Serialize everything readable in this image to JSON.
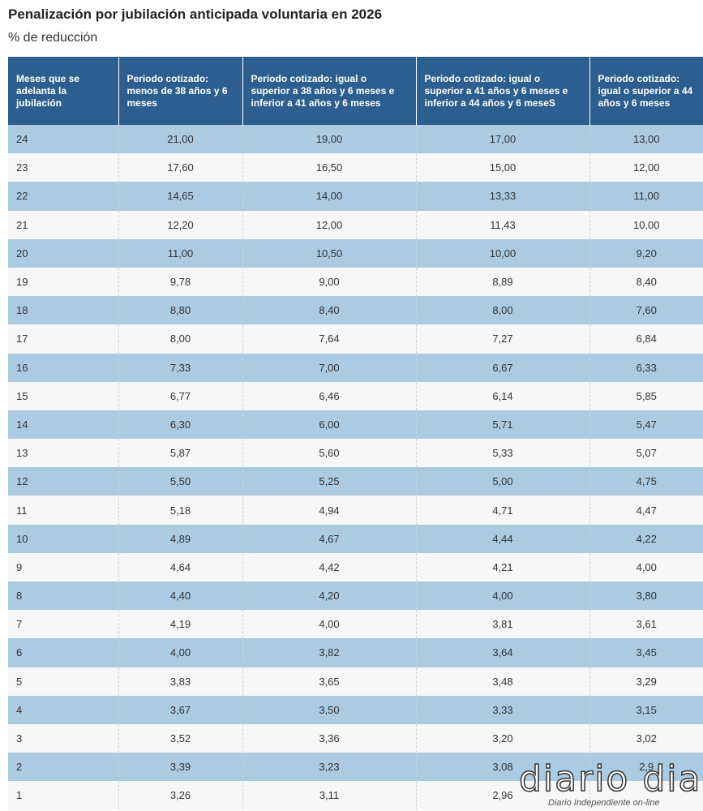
{
  "title": "Penalización por jubilación anticipada voluntaria en 2026",
  "subtitle": "% de reducción",
  "chart_data": {
    "type": "table",
    "columns": [
      "Meses que se adelanta la jubilación",
      "Periodo cotizado: menos de 38 años y 6 meses",
      "Periodo cotizado: igual o superior a 38 años y 6 meses e inferior a 41 años y 6 meses",
      "Periodo cotizado: igual o superior a 41 años y 6 meses e inferior a 44 años y 6 meseS",
      "Periodo cotizado: igual o superior a 44 años y 6 meses"
    ],
    "rows": [
      [
        "24",
        "21,00",
        "19,00",
        "17,00",
        "13,00"
      ],
      [
        "23",
        "17,60",
        "16,50",
        "15,00",
        "12,00"
      ],
      [
        "22",
        "14,65",
        "14,00",
        "13,33",
        "11,00"
      ],
      [
        "21",
        "12,20",
        "12,00",
        "11,43",
        "10,00"
      ],
      [
        "20",
        "11,00",
        "10,50",
        "10,00",
        "9,20"
      ],
      [
        "19",
        "9,78",
        "9,00",
        "8,89",
        "8,40"
      ],
      [
        "18",
        "8,80",
        "8,40",
        "8,00",
        "7,60"
      ],
      [
        "17",
        "8,00",
        "7,64",
        "7,27",
        "6,84"
      ],
      [
        "16",
        "7,33",
        "7,00",
        "6,67",
        "6,33"
      ],
      [
        "15",
        "6,77",
        "6,46",
        "6,14",
        "5,85"
      ],
      [
        "14",
        "6,30",
        "6,00",
        "5,71",
        "5,47"
      ],
      [
        "13",
        "5,87",
        "5,60",
        "5,33",
        "5,07"
      ],
      [
        "12",
        "5,50",
        "5,25",
        "5,00",
        "4,75"
      ],
      [
        "11",
        "5,18",
        "4,94",
        "4,71",
        "4,47"
      ],
      [
        "10",
        "4,89",
        "4,67",
        "4,44",
        "4,22"
      ],
      [
        "9",
        "4,64",
        "4,42",
        "4,21",
        "4,00"
      ],
      [
        "8",
        "4,40",
        "4,20",
        "4,00",
        "3,80"
      ],
      [
        "7",
        "4,19",
        "4,00",
        "3,81",
        "3,61"
      ],
      [
        "6",
        "4,00",
        "3,82",
        "3,64",
        "3,45"
      ],
      [
        "5",
        "3,83",
        "3,65",
        "3,48",
        "3,29"
      ],
      [
        "4",
        "3,67",
        "3,50",
        "3,33",
        "3,15"
      ],
      [
        "3",
        "3,52",
        "3,36",
        "3,20",
        "3,02"
      ],
      [
        "2",
        "3,39",
        "3,23",
        "3,08",
        "2,9"
      ],
      [
        "1",
        "3,26",
        "3,11",
        "2,96",
        ""
      ]
    ]
  },
  "watermark": {
    "logo": "diario dia",
    "tagline": "Diario Independiente on-line"
  }
}
